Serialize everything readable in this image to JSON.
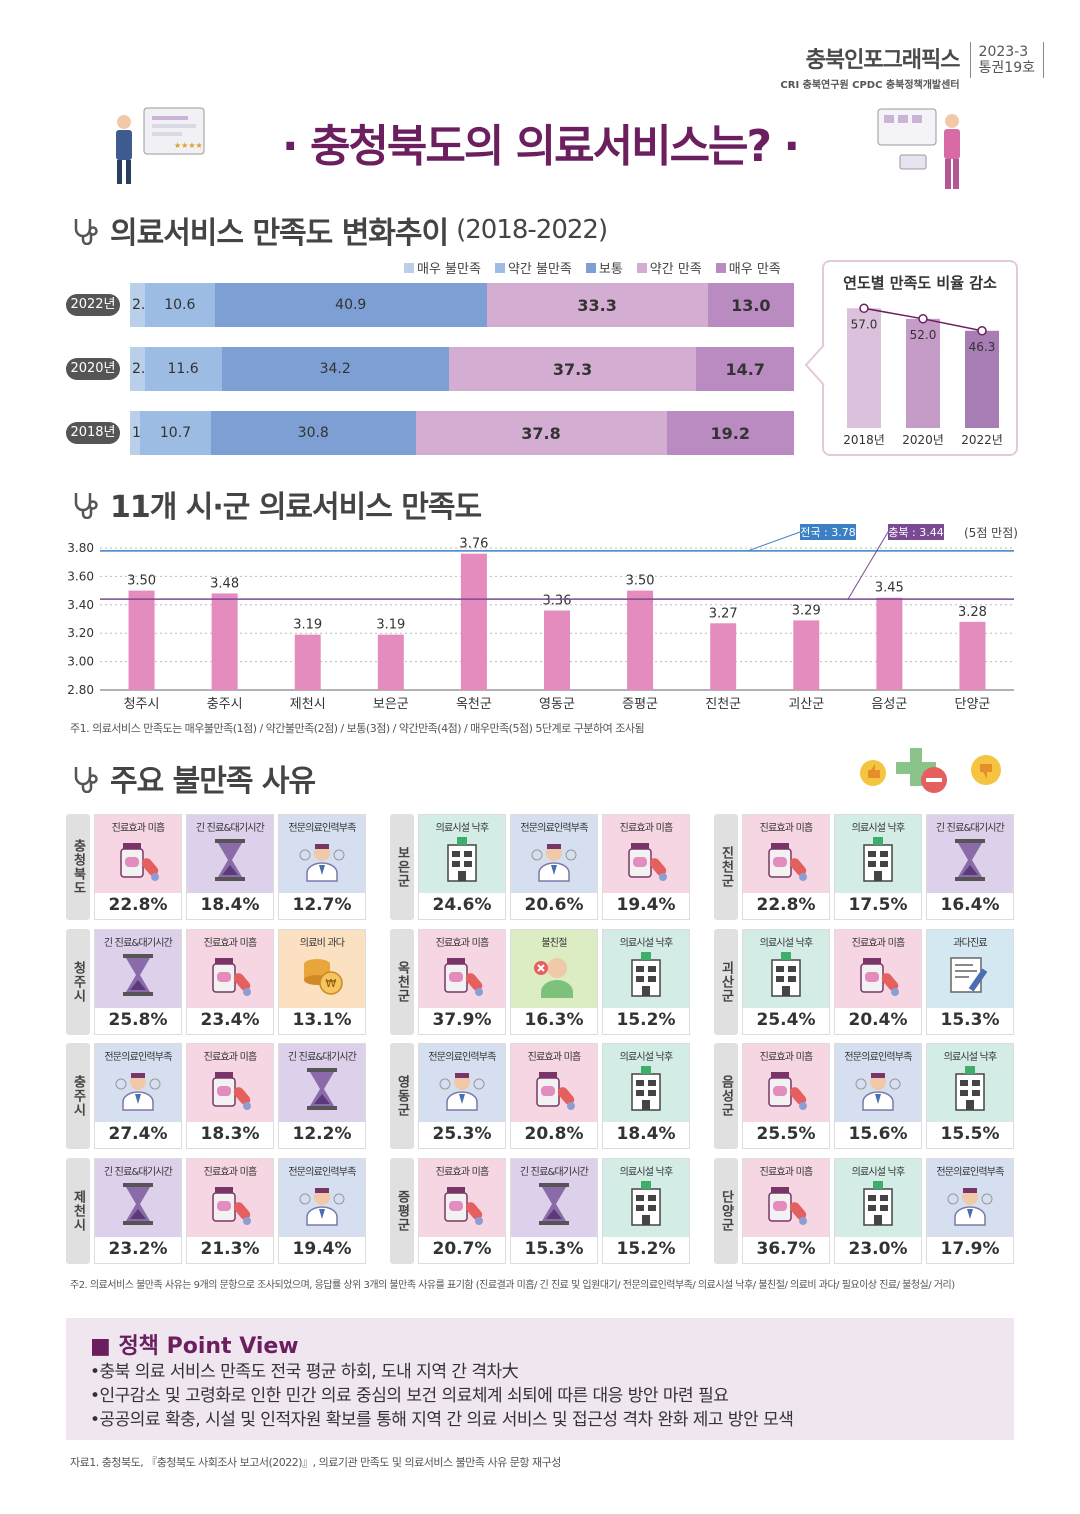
{
  "header": {
    "brand_title": "충북인포그래픽스",
    "brand_orgs": "CRI 충북연구원 CPDC 충북정책개발센터",
    "issue_line1": "2023-3",
    "issue_line2": "통권19호"
  },
  "main_title": "· 충청북도의 의료서비스는? ·",
  "section1": {
    "title": "의료서비스 만족도 변화추이",
    "sub": "(2018-2022)"
  },
  "section2": {
    "title": "11개 시·군 의료서비스 만족도"
  },
  "section3": {
    "title": "주요 불만족 사유"
  },
  "colors": {
    "very_dissatisfied": "#b9cfea",
    "slightly_dissatisfied": "#9dbce4",
    "normal": "#7d9fd3",
    "slightly_satisfied": "#d4add3",
    "very_satisfied": "#b98bc0",
    "city_bar": "#e48cbd",
    "national_line": "#3b7fc4",
    "chungbuk_line": "#7a4a93"
  },
  "chart_data": [
    {
      "type": "bar",
      "stacked": true,
      "orientation": "horizontal",
      "categories": [
        "2022년",
        "2020년",
        "2018년"
      ],
      "legend": [
        "매우 불만족",
        "약간 불만족",
        "보통",
        "약간 만족",
        "매우 만족"
      ],
      "series": [
        {
          "name": "매우 불만족",
          "values": [
            2.2,
            2.2,
            1.5
          ]
        },
        {
          "name": "약간 불만족",
          "values": [
            10.6,
            11.6,
            10.7
          ]
        },
        {
          "name": "보통",
          "values": [
            40.9,
            34.2,
            30.8
          ]
        },
        {
          "name": "약간 만족",
          "values": [
            33.3,
            37.3,
            37.8
          ]
        },
        {
          "name": "매우 만족",
          "values": [
            13.0,
            14.7,
            19.2
          ]
        }
      ]
    },
    {
      "type": "bar",
      "title": "연도별 만족도 비율 감소",
      "categories": [
        "2018년",
        "2020년",
        "2022년"
      ],
      "values": [
        57.0,
        52.0,
        46.3
      ],
      "labels": [
        "57.0",
        "52.0",
        "46.3"
      ],
      "ylim": [
        0,
        60
      ]
    },
    {
      "type": "bar",
      "categories": [
        "청주시",
        "충주시",
        "제천시",
        "보은군",
        "옥천군",
        "영동군",
        "증평군",
        "진천군",
        "괴산군",
        "음성군",
        "단양군"
      ],
      "values": [
        3.5,
        3.48,
        3.19,
        3.19,
        3.76,
        3.36,
        3.5,
        3.27,
        3.29,
        3.45,
        3.28
      ],
      "labels": [
        "3.50",
        "3.48",
        "3.19",
        "3.19",
        "3.76",
        "3.36",
        "3.50",
        "3.27",
        "3.29",
        "3.45",
        "3.28"
      ],
      "ylim": [
        2.8,
        3.8
      ],
      "yticks": [
        "3.80",
        "3.60",
        "3.40",
        "3.20",
        "3.00",
        "2.80"
      ],
      "reference_lines": [
        {
          "label": "전국 : 3.78",
          "value": 3.78
        },
        {
          "label": "충북 : 3.44",
          "value": 3.44
        }
      ],
      "unit_note": "(5점 만점)"
    }
  ],
  "note1": "주1. 의료서비스 만족도는 매우불만족(1점) / 약간불만족(2점) / 보통(3점) / 약간만족(4점) / 매우만족(5점) 5단계로 구분하여 조사됨",
  "reasons": [
    {
      "region": "충청북도",
      "items": [
        {
          "label": "진료효과 미흡",
          "value": "22.8%",
          "icon": "medicine-icon"
        },
        {
          "label": "긴 진료&대기시간",
          "value": "18.4%",
          "icon": "hourglass-icon"
        },
        {
          "label": "전문의료인력부족",
          "value": "12.7%",
          "icon": "doctor-icon"
        }
      ]
    },
    {
      "region": "보은군",
      "items": [
        {
          "label": "의료시설 낙후",
          "value": "24.6%",
          "icon": "hospital-icon"
        },
        {
          "label": "전문의료인력부족",
          "value": "20.6%",
          "icon": "doctor-icon"
        },
        {
          "label": "진료효과 미흡",
          "value": "19.4%",
          "icon": "medicine-icon"
        }
      ]
    },
    {
      "region": "진천군",
      "items": [
        {
          "label": "진료효과 미흡",
          "value": "22.8%",
          "icon": "medicine-icon"
        },
        {
          "label": "의료시설 낙후",
          "value": "17.5%",
          "icon": "hospital-icon"
        },
        {
          "label": "긴 진료&대기시간",
          "value": "16.4%",
          "icon": "hourglass-icon"
        }
      ]
    },
    {
      "region": "청주시",
      "items": [
        {
          "label": "긴 진료&대기시간",
          "value": "25.8%",
          "icon": "hourglass-icon"
        },
        {
          "label": "진료효과 미흡",
          "value": "23.4%",
          "icon": "medicine-icon"
        },
        {
          "label": "의료비 과다",
          "value": "13.1%",
          "icon": "coins-icon"
        }
      ]
    },
    {
      "region": "옥천군",
      "items": [
        {
          "label": "진료효과 미흡",
          "value": "37.9%",
          "icon": "medicine-icon"
        },
        {
          "label": "불친절",
          "value": "16.3%",
          "icon": "unkind-icon"
        },
        {
          "label": "의료시설 낙후",
          "value": "15.2%",
          "icon": "hospital-icon"
        }
      ]
    },
    {
      "region": "괴산군",
      "items": [
        {
          "label": "의료시설 낙후",
          "value": "25.4%",
          "icon": "hospital-icon"
        },
        {
          "label": "진료효과 미흡",
          "value": "20.4%",
          "icon": "medicine-icon"
        },
        {
          "label": "과다진료",
          "value": "15.3%",
          "icon": "document-icon"
        }
      ]
    },
    {
      "region": "충주시",
      "items": [
        {
          "label": "전문의료인력부족",
          "value": "27.4%",
          "icon": "doctor-icon"
        },
        {
          "label": "진료효과 미흡",
          "value": "18.3%",
          "icon": "medicine-icon"
        },
        {
          "label": "긴 진료&대기시간",
          "value": "12.2%",
          "icon": "hourglass-icon"
        }
      ]
    },
    {
      "region": "영동군",
      "items": [
        {
          "label": "전문의료인력부족",
          "value": "25.3%",
          "icon": "doctor-icon"
        },
        {
          "label": "진료효과 미흡",
          "value": "20.8%",
          "icon": "medicine-icon"
        },
        {
          "label": "의료시설 낙후",
          "value": "18.4%",
          "icon": "hospital-icon"
        }
      ]
    },
    {
      "region": "음성군",
      "items": [
        {
          "label": "진료효과 미흡",
          "value": "25.5%",
          "icon": "medicine-icon"
        },
        {
          "label": "전문의료인력부족",
          "value": "15.6%",
          "icon": "doctor-icon"
        },
        {
          "label": "의료시설 낙후",
          "value": "15.5%",
          "icon": "hospital-icon"
        }
      ]
    },
    {
      "region": "제천시",
      "items": [
        {
          "label": "긴 진료&대기시간",
          "value": "23.2%",
          "icon": "hourglass-icon"
        },
        {
          "label": "진료효과 미흡",
          "value": "21.3%",
          "icon": "medicine-icon"
        },
        {
          "label": "전문의료인력부족",
          "value": "19.4%",
          "icon": "doctor-icon"
        }
      ]
    },
    {
      "region": "증평군",
      "items": [
        {
          "label": "진료효과 미흡",
          "value": "20.7%",
          "icon": "medicine-icon"
        },
        {
          "label": "긴 진료&대기시간",
          "value": "15.3%",
          "icon": "hourglass-icon"
        },
        {
          "label": "의료시설 낙후",
          "value": "15.2%",
          "icon": "hospital-icon"
        }
      ]
    },
    {
      "region": "단양군",
      "items": [
        {
          "label": "진료효과 미흡",
          "value": "36.7%",
          "icon": "medicine-icon"
        },
        {
          "label": "의료시설 낙후",
          "value": "23.0%",
          "icon": "hospital-icon"
        },
        {
          "label": "전문의료인력부족",
          "value": "17.9%",
          "icon": "doctor-icon"
        }
      ]
    }
  ],
  "note2": "주2. 의료서비스 불만족 사유는 9개의 문항으로 조사되었으며, 응답률 상위 3개의 불만족 사유를 표기함 (진료결과 미흡/ 긴 진료 및 입원대기/ 전문의료인력부족/ 의료시설 낙후/ 불친절/ 의료비 과다/ 필요이상 진료/ 불청실/ 거리)",
  "policy": {
    "title": "■ 정책 Point View",
    "points": [
      "•충북 의료 서비스 만족도 전국 평균 하회, 도내 지역 간 격차大",
      "•인구감소 및 고령화로 인한 민간 의료 중심의 보건 의료체계 쇠퇴에 따른 대응 방안 마련 필요",
      "•공공의료 확충, 시설 및 인적자원 확보를 통해 지역 간 의료 서비스 및 접근성 격차 완화 제고 방안 모색"
    ]
  },
  "source": "자료1. 충청북도, 『충청북도 사회조사 보고서(2022)』, 의료기관 만족도 및 의료서비스 불만족 사유 문항 재구성"
}
